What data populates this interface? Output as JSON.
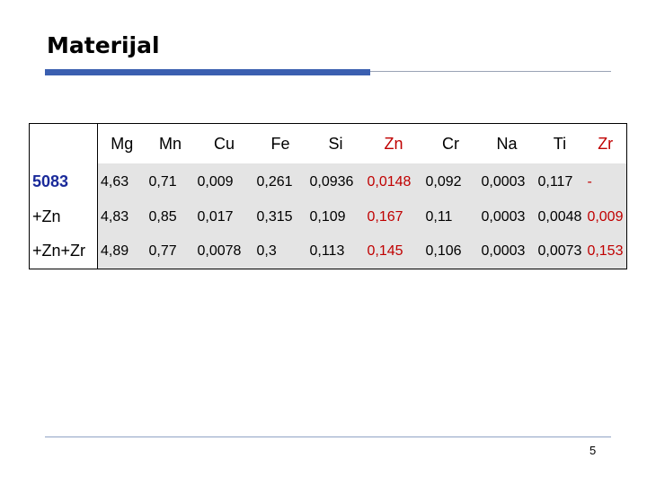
{
  "header": {
    "title": "Materijal"
  },
  "table": {
    "columns": [
      "",
      "Mg",
      "Mn",
      "Cu",
      "Fe",
      "Si",
      "Zn",
      "Cr",
      "Na",
      "Ti",
      "Zr"
    ],
    "rows": [
      {
        "label": "5083",
        "values": [
          "4,63",
          "0,71",
          "0,009",
          "0,261",
          "0,0936",
          "0,0148",
          "0,092",
          "0,0003",
          "0,117",
          "-"
        ]
      },
      {
        "label": "+Zn",
        "values": [
          "4,83",
          "0,85",
          "0,017",
          "0,315",
          "0,109",
          "0,167",
          "0,11",
          "0,0003",
          "0,0048",
          "0,009"
        ]
      },
      {
        "label": "+Zn+Zr",
        "values": [
          "4,89",
          "0,77",
          "0,0078",
          "0,3",
          "0,113",
          "0,145",
          "0,106",
          "0,0003",
          "0,0073",
          "0,153"
        ]
      }
    ]
  },
  "footer": {
    "page": "5"
  }
}
